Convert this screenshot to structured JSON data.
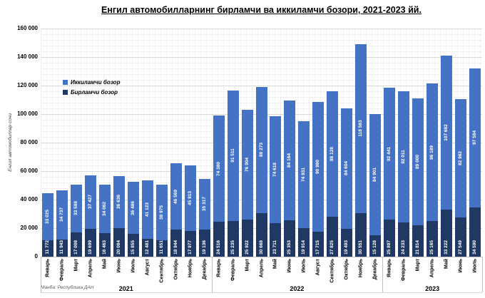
{
  "chart_data": {
    "type": "bar",
    "stacked": true,
    "title": "Енгил автомобилларнинг бирламчи ва иккиламчи бозори, 2021-2023 йй.",
    "ylabel": "Енгил автомобиллар сони",
    "ylim": [
      0,
      160000
    ],
    "ytick_step": 20000,
    "grid": true,
    "legend_position": "upper-left",
    "source_note": "Манба: Республика ДАН",
    "groups": [
      {
        "year": "2021",
        "months": [
          "Январь",
          "Февраль",
          "Март",
          "Апрель",
          "Май",
          "Июнь",
          "Июль",
          "Август",
          "Сентябрь",
          "Октябрь",
          "Ноябрь",
          "Декабрь"
        ]
      },
      {
        "year": "2022",
        "months": [
          "Январь",
          "Февраль",
          "Март",
          "Апрель",
          "Май",
          "Июнь",
          "Июль",
          "Август",
          "Сентябрь",
          "Октябрь",
          "Ноябрь",
          "Декабрь"
        ]
      },
      {
        "year": "2023",
        "months": [
          "Январь",
          "Февраль",
          "Март",
          "Апрель",
          "Май",
          "Июнь",
          "Июль"
        ]
      }
    ],
    "series": [
      {
        "name": "Бирламчи бозор",
        "color": "#1F3864",
        "values": [
          11772,
          11943,
          17008,
          19699,
          16463,
          20084,
          15855,
          12481,
          11651,
          18944,
          17977,
          19136,
          24516,
          25235,
          25922,
          30668,
          23711,
          25353,
          19914,
          17715,
          27825,
          19493,
          30551,
          15128,
          25897,
          24233,
          21814,
          25165,
          33222,
          27549,
          34590
        ]
      },
      {
        "name": "Иккиламчи бозор",
        "color": "#4472C4",
        "values": [
          33025,
          34737,
          33588,
          37427,
          34062,
          36636,
          36486,
          41123,
          38975,
          46569,
          45913,
          35317,
          74380,
          91511,
          76904,
          88273,
          74618,
          84164,
          74931,
          90980,
          88128,
          84604,
          118563,
          84901,
          92441,
          92011,
          89000,
          96189,
          107682,
          82982,
          97584
        ]
      }
    ]
  }
}
